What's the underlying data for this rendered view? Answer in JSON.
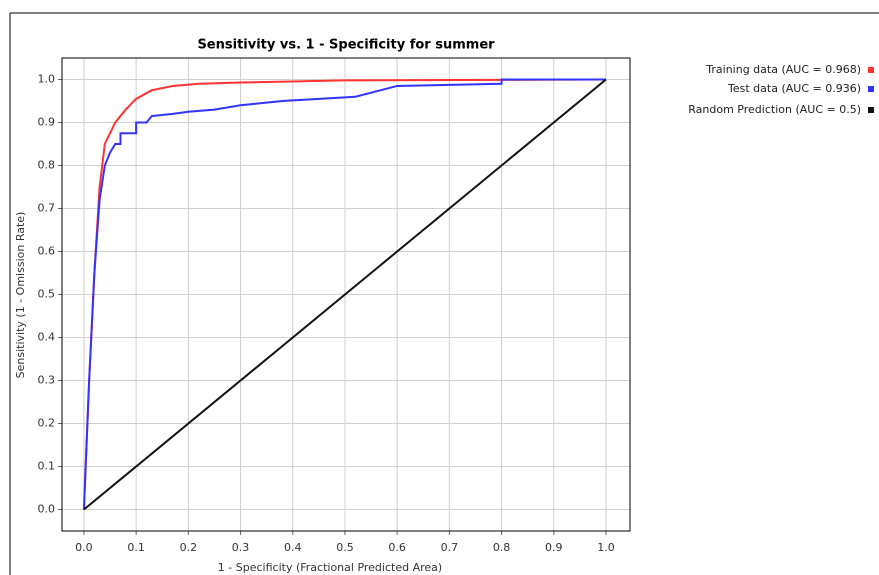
{
  "chart_data": {
    "type": "line",
    "title": "Sensitivity vs. 1 - Specificity for summer",
    "x_label": "1 - Specificity  (Fractional Predicted Area)",
    "y_label": "Sensitivity (1 - Omission Rate)",
    "xlim": [
      -0.042,
      1.046
    ],
    "ylim": [
      -0.05,
      1.05
    ],
    "xticks": [
      {
        "value": 0,
        "label": "0.0"
      },
      0.1,
      0.2,
      0.3,
      0.4,
      0.5,
      0.6,
      0.7,
      0.8,
      0.9,
      {
        "value": 1,
        "label": "1.0"
      }
    ],
    "yticks": [
      {
        "value": 0,
        "label": "0.0"
      },
      0.1,
      0.2,
      0.3,
      0.4,
      0.5,
      0.6,
      0.7,
      0.8,
      0.9,
      {
        "value": 1,
        "label": "1.0"
      }
    ],
    "grid": true,
    "legend": "top-right-outside",
    "series": [
      {
        "name": "Training data (AUC = 0.968)",
        "color": "#ff3333",
        "x": [
          0,
          0.01,
          0.02,
          0.03,
          0.04,
          0.06,
          0.08,
          0.1,
          0.13,
          0.17,
          0.22,
          0.3,
          0.5,
          0.8,
          1
        ],
        "values": [
          0,
          0.3,
          0.55,
          0.75,
          0.85,
          0.9,
          0.93,
          0.955,
          0.975,
          0.985,
          0.99,
          0.993,
          0.998,
          0.999,
          1
        ]
      },
      {
        "name": "Test data (AUC = 0.936)",
        "color": "#3333ff",
        "x": [
          0,
          0.01,
          0.02,
          0.03,
          0.04,
          0.05,
          0.06,
          0.07,
          0.07,
          0.1,
          0.1,
          0.12,
          0.13,
          0.17,
          0.2,
          0.25,
          0.3,
          0.38,
          0.45,
          0.52,
          0.6,
          0.8,
          0.8,
          1
        ],
        "values": [
          0,
          0.3,
          0.55,
          0.72,
          0.8,
          0.83,
          0.85,
          0.85,
          0.875,
          0.875,
          0.9,
          0.9,
          0.915,
          0.92,
          0.925,
          0.93,
          0.94,
          0.95,
          0.955,
          0.96,
          0.985,
          0.99,
          1,
          1
        ]
      },
      {
        "name": "Random Prediction (AUC = 0.5)",
        "color": "#111111",
        "x": [
          0,
          1
        ],
        "values": [
          0,
          1
        ]
      }
    ]
  }
}
